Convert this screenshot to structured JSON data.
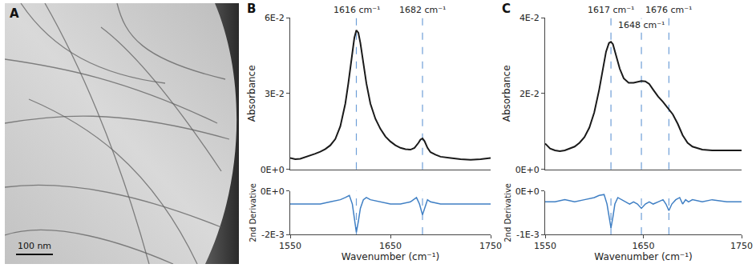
{
  "image_panel": {
    "label": "A",
    "scale_bar": "100 nm"
  },
  "chart_data": [
    {
      "type": "line",
      "panel": "B",
      "ylabel": "Absorbance",
      "color": "#1a1a1a",
      "line_style": "solid",
      "x": [
        1550,
        1555,
        1560,
        1565,
        1570,
        1575,
        1580,
        1585,
        1590,
        1595,
        1600,
        1605,
        1608,
        1611,
        1614,
        1616,
        1618,
        1620,
        1623,
        1626,
        1630,
        1635,
        1640,
        1645,
        1650,
        1655,
        1660,
        1665,
        1670,
        1674,
        1678,
        1680,
        1682,
        1684,
        1687,
        1690,
        1695,
        1700,
        1710,
        1720,
        1730,
        1740,
        1750
      ],
      "values": [
        0.0045,
        0.004,
        0.0042,
        0.0048,
        0.0055,
        0.0062,
        0.007,
        0.008,
        0.0095,
        0.012,
        0.017,
        0.026,
        0.034,
        0.044,
        0.052,
        0.055,
        0.054,
        0.05,
        0.042,
        0.034,
        0.026,
        0.02,
        0.016,
        0.013,
        0.011,
        0.0095,
        0.0085,
        0.008,
        0.0078,
        0.0085,
        0.0105,
        0.0118,
        0.0122,
        0.0112,
        0.0085,
        0.0068,
        0.0058,
        0.005,
        0.0045,
        0.004,
        0.0038,
        0.004,
        0.0045
      ],
      "xlim": [
        1550,
        1750
      ],
      "ylim": [
        0,
        0.06
      ],
      "yticks": [
        {
          "value": 0,
          "label": "0E+0"
        },
        {
          "value": 0.03,
          "label": "3E-2"
        },
        {
          "value": 0.06,
          "label": "6E-2"
        }
      ],
      "tick_labels": "y",
      "annotations": [
        {
          "text": "1616 cm⁻¹",
          "x": 1616
        },
        {
          "text": "1682 cm⁻¹",
          "x": 1682
        }
      ]
    },
    {
      "type": "line",
      "xlabel": "Wavenumber (cm⁻¹)",
      "ylabel": "2nd Derivative",
      "color": "#3f7fc4",
      "line_style": "solid",
      "x": [
        1550,
        1560,
        1570,
        1580,
        1590,
        1600,
        1605,
        1609,
        1612,
        1614,
        1616,
        1618,
        1620,
        1623,
        1626,
        1630,
        1640,
        1650,
        1660,
        1670,
        1676,
        1679,
        1682,
        1684,
        1687,
        1690,
        1700,
        1720,
        1750
      ],
      "values": [
        -0.0006,
        -0.0006,
        -0.0006,
        -0.0006,
        -0.0005,
        -0.0004,
        -0.0003,
        -0.0002,
        -0.0006,
        -0.0013,
        -0.0019,
        -0.0014,
        -0.0008,
        -0.0004,
        -0.0003,
        -0.0004,
        -0.0005,
        -0.0006,
        -0.0006,
        -0.0005,
        -0.0003,
        -0.0006,
        -0.0011,
        -0.0008,
        -0.0004,
        -0.0005,
        -0.0006,
        -0.0006,
        -0.0006
      ],
      "xlim": [
        1550,
        1750
      ],
      "ylim": [
        -0.002,
        0
      ],
      "xticks": [
        1550,
        1650,
        1750
      ],
      "yticks": [
        {
          "value": -0.002,
          "label": "-2E-3"
        },
        {
          "value": 0,
          "label": "0E+0"
        }
      ],
      "vlines": [
        1616,
        1682
      ]
    },
    {
      "type": "line",
      "panel": "C",
      "ylabel": "Absorbance",
      "color": "#1a1a1a",
      "line_style": "solid",
      "x": [
        1550,
        1555,
        1560,
        1565,
        1570,
        1575,
        1580,
        1585,
        1590,
        1595,
        1600,
        1605,
        1609,
        1612,
        1615,
        1617,
        1619,
        1622,
        1626,
        1630,
        1635,
        1640,
        1645,
        1648,
        1652,
        1656,
        1660,
        1665,
        1670,
        1674,
        1676,
        1680,
        1685,
        1690,
        1695,
        1700,
        1710,
        1720,
        1735,
        1750
      ],
      "values": [
        0.0068,
        0.0055,
        0.005,
        0.0048,
        0.005,
        0.0055,
        0.006,
        0.007,
        0.0085,
        0.011,
        0.015,
        0.021,
        0.027,
        0.031,
        0.0333,
        0.0336,
        0.033,
        0.03,
        0.0265,
        0.024,
        0.0228,
        0.0228,
        0.0232,
        0.0233,
        0.0232,
        0.0225,
        0.021,
        0.0192,
        0.0178,
        0.0165,
        0.016,
        0.0145,
        0.012,
        0.009,
        0.007,
        0.006,
        0.0052,
        0.005,
        0.005,
        0.005
      ],
      "xlim": [
        1550,
        1750
      ],
      "ylim": [
        0,
        0.04
      ],
      "yticks": [
        {
          "value": 0,
          "label": "0E+0"
        },
        {
          "value": 0.02,
          "label": "2E-2"
        },
        {
          "value": 0.04,
          "label": "4E-2"
        }
      ],
      "tick_labels": "y",
      "annotations": [
        {
          "text": "1617 cm⁻¹",
          "x": 1617
        },
        {
          "text": "1648 cm⁻¹",
          "x": 1648
        },
        {
          "text": "1676 cm⁻¹",
          "x": 1676
        }
      ]
    },
    {
      "type": "line",
      "xlabel": "Wavenumber (cm⁻¹)",
      "ylabel": "2nd Derivative",
      "color": "#3f7fc4",
      "line_style": "solid",
      "x": [
        1550,
        1560,
        1570,
        1580,
        1590,
        1600,
        1605,
        1610,
        1613,
        1615,
        1617,
        1619,
        1621,
        1624,
        1628,
        1632,
        1636,
        1640,
        1644,
        1648,
        1652,
        1656,
        1660,
        1665,
        1670,
        1673,
        1676,
        1679,
        1683,
        1687,
        1690,
        1693,
        1696,
        1700,
        1710,
        1720,
        1735,
        1750
      ],
      "values": [
        -0.00025,
        -0.00025,
        -0.0002,
        -0.00025,
        -0.0002,
        -0.00015,
        -0.0001,
        -8e-05,
        -0.0003,
        -0.0006,
        -0.00085,
        -0.0006,
        -0.0003,
        -0.00015,
        -0.0002,
        -0.00025,
        -0.0003,
        -0.00025,
        -0.0003,
        -0.0004,
        -0.0003,
        -0.00025,
        -0.0003,
        -0.00025,
        -0.0002,
        -0.0003,
        -0.00045,
        -0.0003,
        -0.0002,
        -0.00015,
        -0.0003,
        -0.0002,
        -0.00025,
        -0.0002,
        -0.00025,
        -0.0002,
        -0.00025,
        -0.00025
      ],
      "xlim": [
        1550,
        1750
      ],
      "ylim": [
        -0.001,
        0
      ],
      "xticks": [
        1550,
        1650,
        1750
      ],
      "yticks": [
        {
          "value": -0.001,
          "label": "-1E-3"
        },
        {
          "value": 0,
          "label": "0E+0"
        }
      ],
      "vlines": [
        1617,
        1648,
        1676
      ]
    }
  ]
}
